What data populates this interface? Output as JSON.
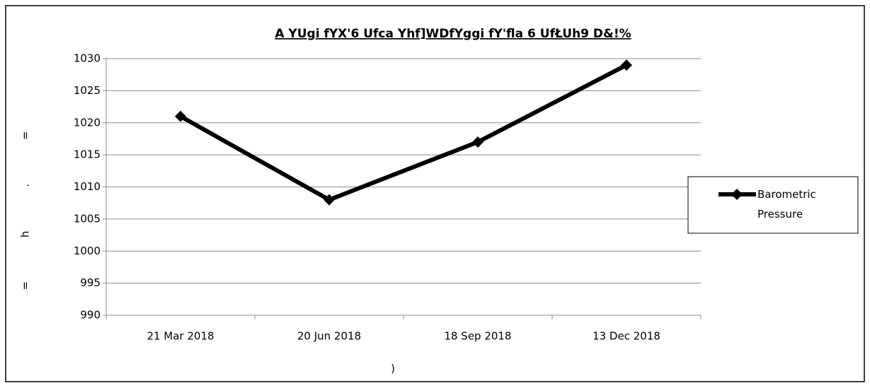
{
  "chart_data": {
    "type": "line",
    "title": "A YUgi fYX'6 Ufca Yhf]WDfYggi fY'fla 6 UfŁUh9 D&!%",
    "ylabel": "=h.=",
    "xlabel": ")",
    "categories": [
      "21 Mar 2018",
      "20 Jun 2018",
      "18 Sep 2018",
      "13 Dec 2018"
    ],
    "series": [
      {
        "name": "Barometric Pressure",
        "color": "#000000",
        "values": [
          1021,
          1008,
          1017,
          1029
        ]
      }
    ],
    "ylim": [
      990,
      1030
    ],
    "yticks": [
      990,
      995,
      1000,
      1005,
      1010,
      1015,
      1020,
      1025,
      1030
    ],
    "grid": true,
    "legend": "right"
  }
}
